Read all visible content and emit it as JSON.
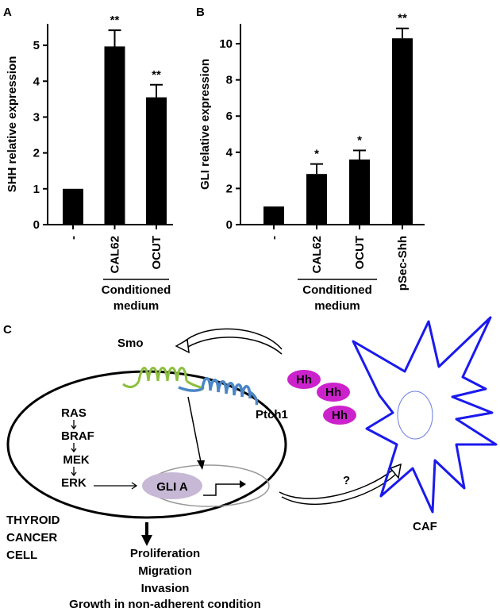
{
  "chart_data": [
    {
      "type": "bar",
      "panel": "A",
      "ylabel": "SHH relative expression",
      "categories": [
        "-",
        "CAL62",
        "OCUT"
      ],
      "values": [
        1,
        4.97,
        3.55
      ],
      "errors": [
        0,
        0.45,
        0.35
      ],
      "annotations": [
        null,
        "**",
        "**"
      ],
      "group_label": [
        "Conditioned",
        "medium"
      ],
      "color": "#000000",
      "ylim": [
        0,
        5.6
      ],
      "yticks": [
        0,
        1,
        2,
        3,
        4,
        5
      ]
    },
    {
      "type": "bar",
      "panel": "B",
      "ylabel": "GLI relative expression",
      "categories": [
        "-",
        "CAL62",
        "OCUT",
        "pSec-Shh"
      ],
      "values": [
        1,
        2.8,
        3.6,
        10.3
      ],
      "errors": [
        0,
        0.55,
        0.5,
        0.55
      ],
      "annotations": [
        null,
        "*",
        "*",
        "**"
      ],
      "group_label": [
        "Conditioned",
        "medium"
      ],
      "color": "#000000",
      "ylim": [
        0,
        11.1
      ],
      "yticks": [
        0,
        2,
        4,
        6,
        8,
        10
      ]
    }
  ],
  "diagram": {
    "panel": "C",
    "smo": "Smo",
    "ptch": "Ptch1",
    "hh": [
      "Hh",
      "Hh",
      "Hh"
    ],
    "cascade": [
      "RAS",
      "BRAF",
      "MEK",
      "ERK"
    ],
    "gli": "GLI A",
    "cell": [
      "THYROID",
      "CANCER",
      "CELL"
    ],
    "caf": "CAF",
    "question": "?",
    "outcomes": [
      "Proliferation",
      "Migration",
      "Invasion",
      "Growth in non-adherent condition"
    ]
  }
}
